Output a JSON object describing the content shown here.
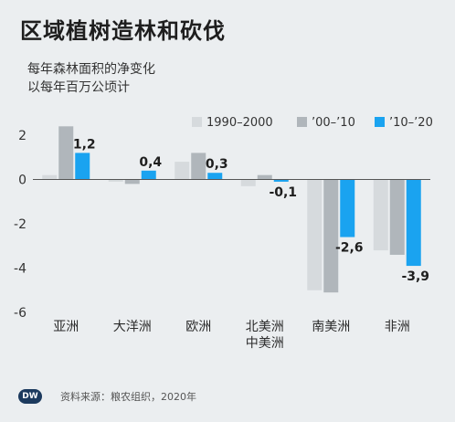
{
  "title": "区域植树造林和砍伐",
  "subtitle_lines": [
    "每年森林面积的净变化",
    "以每年百万公顷计"
  ],
  "source": "资料来源：粮农组织，2020年",
  "logo": "DW",
  "colors": {
    "background": "#ebeef0",
    "series_1990_2000": "#d6dadd",
    "series_00_10": "#b0b6bb",
    "series_10_20": "#1aa3f0",
    "axis": "#555555"
  },
  "chart_data": {
    "type": "bar",
    "title": "区域植树造林和砍伐",
    "ylabel": "",
    "ylim": [
      -6,
      2
    ],
    "yticks": [
      "2",
      "0",
      "-2",
      "-4",
      "-6"
    ],
    "ytick_values": [
      2,
      0,
      -2,
      -4,
      -6
    ],
    "categories": [
      [
        "亚洲"
      ],
      [
        "大洋洲"
      ],
      [
        "欧洲"
      ],
      [
        "北美洲",
        "中美洲"
      ],
      [
        "南美洲"
      ],
      [
        "非洲"
      ]
    ],
    "series": [
      {
        "name": "1990–2000",
        "values": [
          0.2,
          -0.1,
          0.8,
          -0.3,
          -5.0,
          -3.2
        ]
      },
      {
        "name": "’00–’10",
        "values": [
          2.4,
          -0.2,
          1.2,
          0.2,
          -5.1,
          -3.4
        ]
      },
      {
        "name": "’10–’20",
        "values": [
          1.2,
          0.4,
          0.3,
          -0.1,
          -2.6,
          -3.9
        ]
      }
    ],
    "data_labels": [
      "1,2",
      "0,4",
      "0,3",
      "-0,1",
      "-2,6",
      "-3,9"
    ],
    "legend_position": "top-right",
    "grid": false
  }
}
